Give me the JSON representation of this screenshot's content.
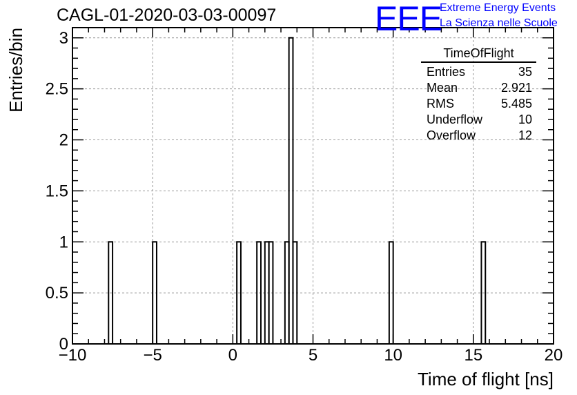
{
  "title": "CAGL-01-2020-03-03-00097",
  "logo": {
    "mark": "EEE",
    "line1": "Extreme Energy Events",
    "line2": "La Scienza nelle Scuole",
    "color": "#0000ff"
  },
  "stats_box": {
    "name": "TimeOfFlight",
    "rows": [
      {
        "label": "Entries",
        "value": "35"
      },
      {
        "label": "Mean",
        "value": "2.921"
      },
      {
        "label": "RMS",
        "value": "5.485"
      },
      {
        "label": "Underflow",
        "value": "10"
      },
      {
        "label": "Overflow",
        "value": "12"
      }
    ]
  },
  "chart_data": {
    "type": "bar",
    "histogram": true,
    "xlabel": "Time of flight [ns]",
    "ylabel": "Entries/bin",
    "xlim": [
      -10,
      20
    ],
    "ylim": [
      0,
      3.1
    ],
    "bin_width": 0.25,
    "x_ticks": [
      -10,
      -5,
      0,
      5,
      10,
      15,
      20
    ],
    "x_tick_labels": [
      "−10",
      "−5",
      "0",
      "5",
      "10",
      "15",
      "20"
    ],
    "y_ticks": [
      0,
      0.5,
      1,
      1.5,
      2,
      2.5,
      3
    ],
    "y_tick_labels": [
      "0",
      "0.5",
      "1",
      "1.5",
      "2",
      "2.5",
      "3"
    ],
    "grid": true,
    "bins": [
      {
        "x0": -7.75,
        "x1": -7.5,
        "value": 1
      },
      {
        "x0": -5.0,
        "x1": -4.75,
        "value": 1
      },
      {
        "x0": 0.25,
        "x1": 0.5,
        "value": 1
      },
      {
        "x0": 1.5,
        "x1": 1.75,
        "value": 1
      },
      {
        "x0": 2.0,
        "x1": 2.25,
        "value": 1
      },
      {
        "x0": 2.25,
        "x1": 2.5,
        "value": 1
      },
      {
        "x0": 3.25,
        "x1": 3.5,
        "value": 1
      },
      {
        "x0": 3.5,
        "x1": 3.75,
        "value": 3
      },
      {
        "x0": 3.75,
        "x1": 4.0,
        "value": 1
      },
      {
        "x0": 9.75,
        "x1": 10.0,
        "value": 1
      },
      {
        "x0": 15.5,
        "x1": 15.75,
        "value": 1
      }
    ],
    "line_color": "#000000",
    "grid_color": "#999999"
  }
}
